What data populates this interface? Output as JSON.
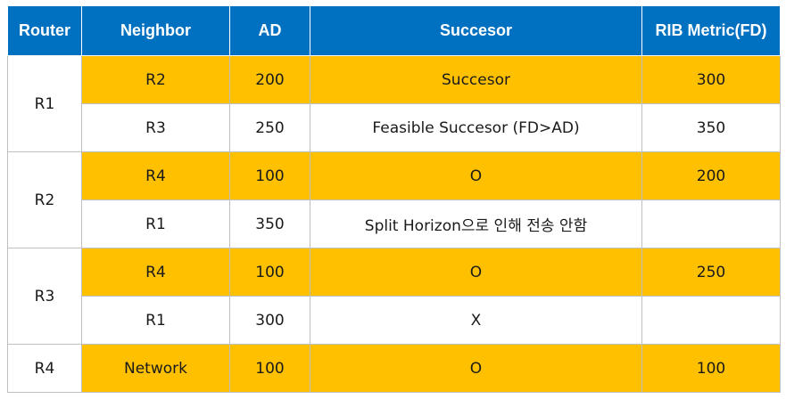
{
  "headers": [
    "Router",
    "Neighbor",
    "AD",
    "Succesor",
    "RIB Metric(FD)"
  ],
  "groups": [
    {
      "router": "R1",
      "rows": [
        {
          "neighbor": "R2",
          "ad": "200",
          "successor": "Succesor",
          "metric": "300",
          "highlight": true
        },
        {
          "neighbor": "R3",
          "ad": "250",
          "successor": "Feasible Succesor (FD>AD)",
          "metric": "350",
          "highlight": false
        }
      ]
    },
    {
      "router": "R2",
      "rows": [
        {
          "neighbor": "R4",
          "ad": "100",
          "successor": "O",
          "metric": "200",
          "highlight": true
        },
        {
          "neighbor": "R1",
          "ad": "350",
          "successor": "Split Horizon으로 인해 전송 안함",
          "metric": "",
          "highlight": false
        }
      ]
    },
    {
      "router": "R3",
      "rows": [
        {
          "neighbor": "R4",
          "ad": "100",
          "successor": "O",
          "metric": "250",
          "highlight": true
        },
        {
          "neighbor": "R1",
          "ad": "300",
          "successor": "X",
          "metric": "",
          "highlight": false
        }
      ]
    },
    {
      "router": "R4",
      "rows": [
        {
          "neighbor": "Network",
          "ad": "100",
          "successor": "O",
          "metric": "100",
          "highlight": true
        }
      ]
    }
  ],
  "colors": {
    "header": "#0070c0",
    "highlight": "#ffc000",
    "plain": "#ffffff"
  }
}
